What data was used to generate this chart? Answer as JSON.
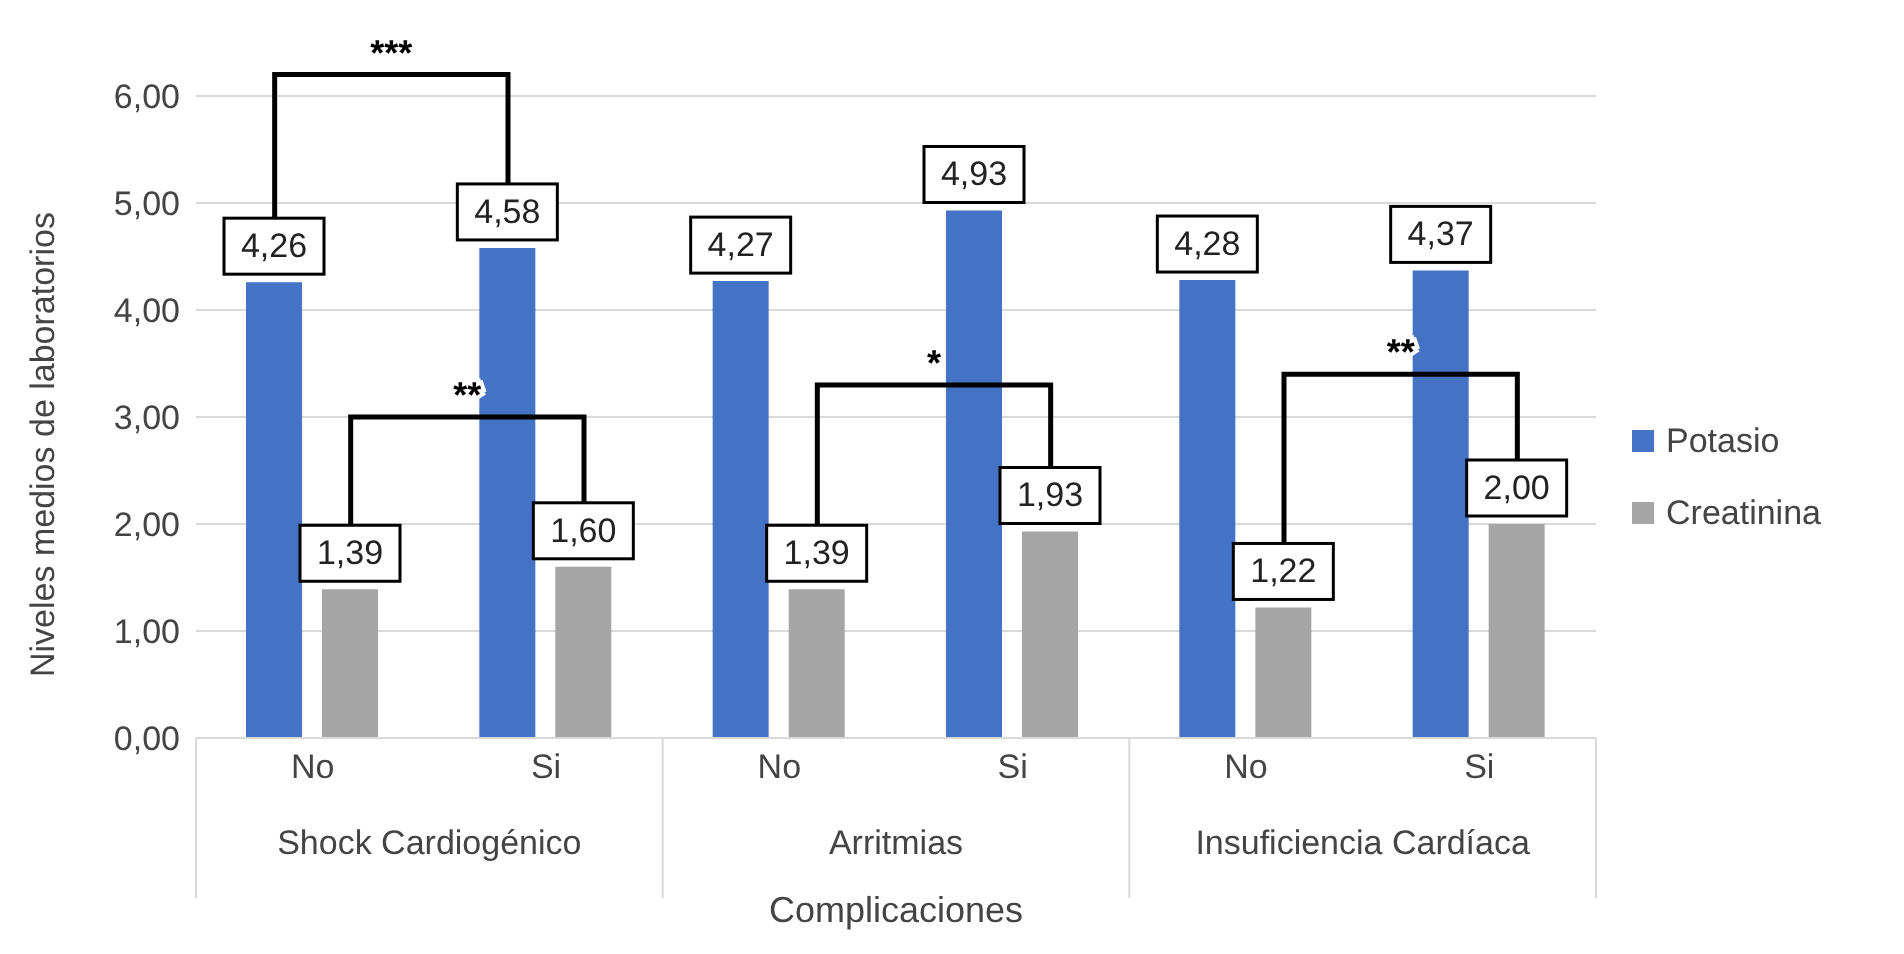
{
  "chart_data": {
    "type": "bar",
    "ylabel": "Niveles medios de laboratorios",
    "xlabel": "Complicaciones",
    "categories": [
      "No",
      "Si",
      "No",
      "Si",
      "No",
      "Si"
    ],
    "series": [
      {
        "name": "Potasio",
        "color": "#4472c4",
        "values": [
          4.26,
          4.58,
          4.27,
          4.93,
          4.28,
          4.37
        ],
        "value_labels": [
          "4,26",
          "4,58",
          "4,27",
          "4,93",
          "4,28",
          "4,37"
        ]
      },
      {
        "name": "Creatinina",
        "color": "#a5a5a5",
        "values": [
          1.39,
          1.6,
          1.39,
          1.93,
          1.22,
          2.0
        ],
        "value_labels": [
          "1,39",
          "1,60",
          "1,39",
          "1,93",
          "1,22",
          "2,00"
        ]
      }
    ],
    "ylim": [
      0,
      6
    ],
    "yticks": [
      {
        "value": 0,
        "label": "0,00"
      },
      {
        "value": 1,
        "label": "1,00"
      },
      {
        "value": 2,
        "label": "2,00"
      },
      {
        "value": 3,
        "label": "3,00"
      },
      {
        "value": 4,
        "label": "4,00"
      },
      {
        "value": 5,
        "label": "5,00"
      },
      {
        "value": 6,
        "label": "6,00"
      }
    ],
    "grid": "y",
    "legend": "right",
    "annotations": [
      "***",
      "**",
      "*",
      "**",
      "Shock Cardiogénico",
      "Arritmias",
      "Insuficiencia Cardíaca"
    ]
  }
}
